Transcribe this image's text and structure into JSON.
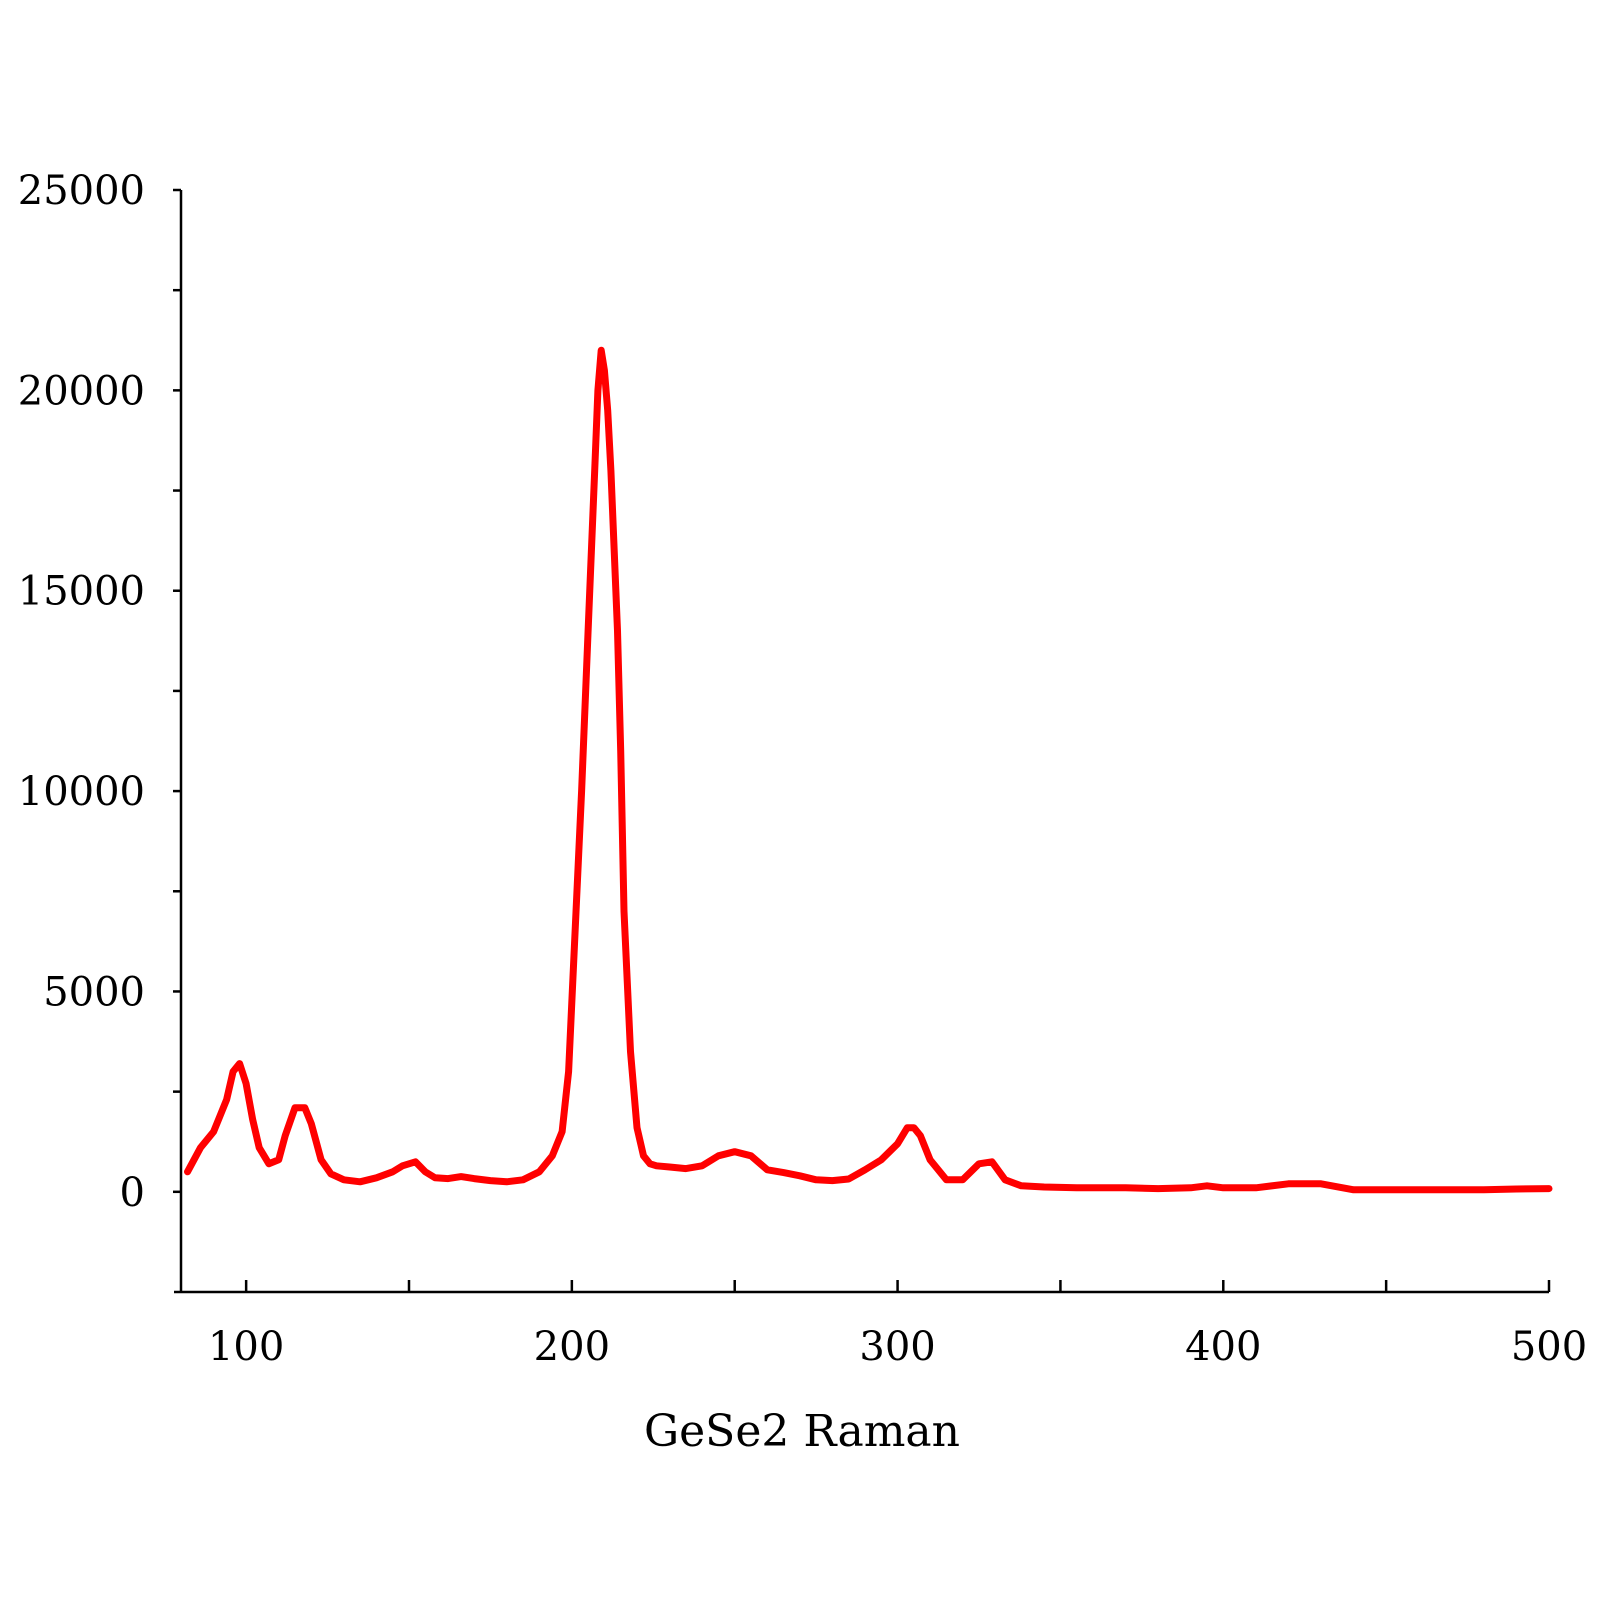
{
  "chart_data": {
    "type": "line",
    "title": "",
    "xlabel": "GeSe2 Raman",
    "ylabel": "",
    "xlim": [
      80,
      500
    ],
    "ylim": [
      -2500,
      25000
    ],
    "x_ticks": [
      100,
      200,
      300,
      400,
      500
    ],
    "x_tick_labels": [
      "100",
      "200",
      "300",
      "400",
      "500"
    ],
    "y_ticks": [
      0,
      5000,
      10000,
      15000,
      20000,
      25000
    ],
    "y_tick_labels": [
      "0",
      "5000",
      "10000",
      "15000",
      "20000",
      "25000"
    ],
    "grid": false,
    "legend": "none",
    "series": [
      {
        "color": "#ff0000",
        "x": [
          82,
          86,
          90,
          94,
          96,
          98,
          100,
          102,
          104,
          107,
          110,
          112,
          115,
          118,
          120,
          123,
          126,
          130,
          135,
          140,
          145,
          148,
          152,
          155,
          158,
          162,
          166,
          170,
          175,
          180,
          185,
          190,
          194,
          197,
          199,
          201,
          203,
          205,
          207,
          208,
          209,
          210,
          211,
          212,
          213,
          214,
          215,
          216,
          218,
          220,
          222,
          224,
          226,
          230,
          235,
          240,
          245,
          250,
          255,
          260,
          265,
          270,
          275,
          280,
          285,
          290,
          295,
          300,
          303,
          305,
          307,
          310,
          315,
          320,
          325,
          329,
          333,
          338,
          345,
          355,
          370,
          380,
          390,
          395,
          400,
          410,
          420,
          430,
          440,
          450,
          460,
          470,
          480,
          490,
          500
        ],
        "y": [
          500,
          1100,
          1500,
          2300,
          3000,
          3200,
          2700,
          1800,
          1100,
          700,
          800,
          1400,
          2100,
          2100,
          1700,
          800,
          450,
          300,
          250,
          350,
          500,
          650,
          750,
          500,
          350,
          330,
          380,
          330,
          280,
          250,
          300,
          500,
          900,
          1500,
          3000,
          6500,
          10000,
          14000,
          18000,
          20000,
          21000,
          20500,
          19500,
          18000,
          16000,
          14000,
          11000,
          7000,
          3500,
          1600,
          900,
          700,
          650,
          620,
          580,
          650,
          900,
          1000,
          900,
          550,
          480,
          400,
          300,
          280,
          320,
          550,
          800,
          1200,
          1600,
          1600,
          1400,
          800,
          300,
          300,
          700,
          750,
          300,
          150,
          120,
          100,
          100,
          80,
          100,
          150,
          100,
          100,
          200,
          200,
          50,
          50,
          50,
          50,
          50,
          70,
          80
        ]
      }
    ]
  }
}
